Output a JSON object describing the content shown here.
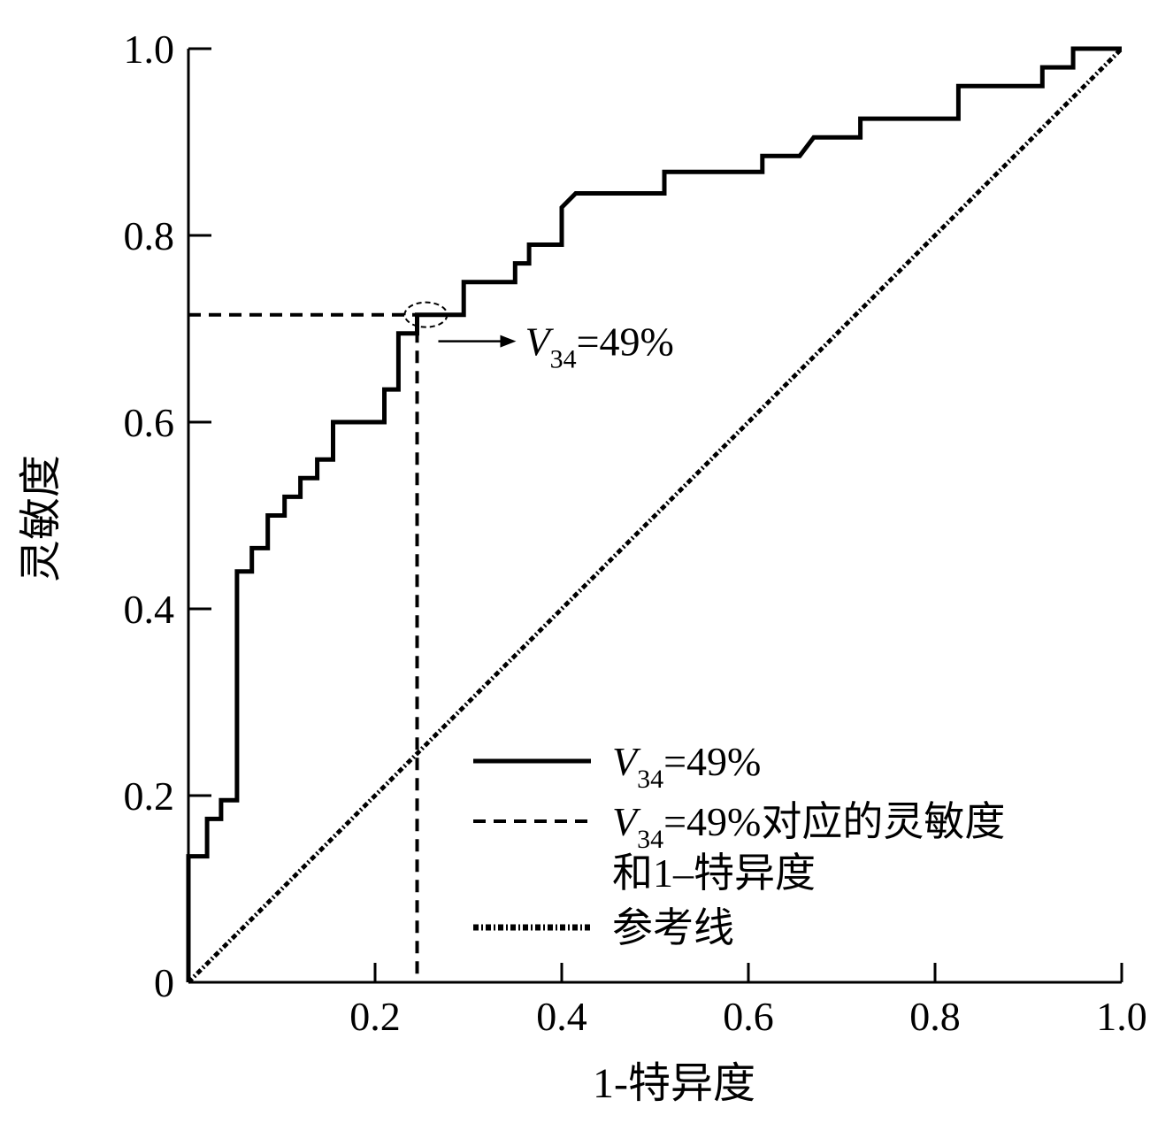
{
  "chart_data": {
    "type": "line",
    "xlabel": "1-特异度",
    "ylabel": "灵敏度",
    "xlim": [
      0,
      1.0
    ],
    "ylim": [
      0,
      1.0
    ],
    "x_ticks": [
      0.2,
      0.4,
      0.6,
      0.8,
      1.0
    ],
    "x_tick_labels": [
      "0.2",
      "0.4",
      "0.6",
      "0.8",
      "1.0"
    ],
    "y_ticks": [
      0,
      0.2,
      0.4,
      0.6,
      0.8,
      1.0
    ],
    "y_tick_labels": [
      "0",
      "0.2",
      "0.4",
      "0.6",
      "0.8",
      "1.0"
    ],
    "grid": false,
    "legend_position": "bottom-right",
    "series": [
      {
        "name": "V34=49%",
        "style": "solid-step",
        "color": "#000000",
        "points": [
          [
            0,
            0
          ],
          [
            0,
            0.135
          ],
          [
            0.02,
            0.135
          ],
          [
            0.02,
            0.175
          ],
          [
            0.035,
            0.175
          ],
          [
            0.035,
            0.195
          ],
          [
            0.052,
            0.195
          ],
          [
            0.052,
            0.44
          ],
          [
            0.068,
            0.44
          ],
          [
            0.068,
            0.465
          ],
          [
            0.085,
            0.465
          ],
          [
            0.085,
            0.5
          ],
          [
            0.103,
            0.5
          ],
          [
            0.103,
            0.52
          ],
          [
            0.12,
            0.52
          ],
          [
            0.12,
            0.54
          ],
          [
            0.138,
            0.54
          ],
          [
            0.138,
            0.56
          ],
          [
            0.155,
            0.56
          ],
          [
            0.155,
            0.6
          ],
          [
            0.21,
            0.6
          ],
          [
            0.21,
            0.635
          ],
          [
            0.225,
            0.635
          ],
          [
            0.225,
            0.695
          ],
          [
            0.245,
            0.695
          ],
          [
            0.245,
            0.715
          ],
          [
            0.295,
            0.715
          ],
          [
            0.295,
            0.75
          ],
          [
            0.35,
            0.75
          ],
          [
            0.35,
            0.77
          ],
          [
            0.365,
            0.77
          ],
          [
            0.365,
            0.79
          ],
          [
            0.4,
            0.79
          ],
          [
            0.4,
            0.83
          ],
          [
            0.415,
            0.845
          ],
          [
            0.51,
            0.845
          ],
          [
            0.51,
            0.868
          ],
          [
            0.615,
            0.868
          ],
          [
            0.615,
            0.885
          ],
          [
            0.655,
            0.885
          ],
          [
            0.67,
            0.905
          ],
          [
            0.72,
            0.905
          ],
          [
            0.72,
            0.925
          ],
          [
            0.825,
            0.925
          ],
          [
            0.825,
            0.96
          ],
          [
            0.915,
            0.96
          ],
          [
            0.915,
            0.98
          ],
          [
            0.948,
            0.98
          ],
          [
            0.948,
            1.0
          ],
          [
            1.0,
            1.0
          ]
        ]
      },
      {
        "name": "V34=49%对应的灵敏度和1–特异度",
        "style": "dashed",
        "color": "#000000",
        "points": [
          [
            0,
            0.715
          ],
          [
            0.245,
            0.715
          ],
          [
            0.245,
            0
          ]
        ]
      },
      {
        "name": "参考线",
        "style": "dash-dot",
        "color": "#000000",
        "points": [
          [
            0,
            0
          ],
          [
            1.0,
            1.0
          ]
        ]
      }
    ],
    "annotation": {
      "text_main": "V",
      "text_sub": "34",
      "text_rest": "=49%",
      "point": [
        0.245,
        0.715
      ]
    },
    "legend_entries": [
      {
        "label_main": "V",
        "label_sub": "34",
        "label_rest": "=49%"
      },
      {
        "label_main": "V",
        "label_sub": "34",
        "label_rest": "=49%对应的灵敏度",
        "label_line2": "和1–特异度"
      },
      {
        "label_main": "参考线"
      }
    ]
  }
}
